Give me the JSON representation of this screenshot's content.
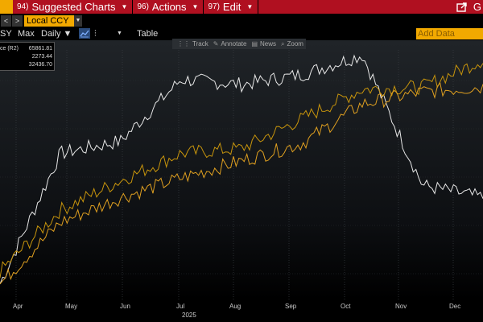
{
  "menubar": {
    "items": [
      {
        "num": "94)",
        "label": "Suggested Charts"
      },
      {
        "num": "96)",
        "label": "Actions"
      },
      {
        "num": "97)",
        "label": "Edit"
      }
    ],
    "right_label": "G"
  },
  "toolbar": {
    "back": "<",
    "forward": ">",
    "currency": "Local CCY"
  },
  "controls": {
    "period_fragment": "SY",
    "max": "Max",
    "frequency": "Daily ▼",
    "table": "Table",
    "add_data": "Add Data"
  },
  "tools": {
    "track": "Track",
    "annotate": "Annotate",
    "news": "News",
    "zoom": "Zoom"
  },
  "legend": {
    "rows": [
      {
        "name": "ce (R2)",
        "value": "65861.81"
      },
      {
        "name": "",
        "value": "2273.44"
      },
      {
        "name": "",
        "value": "32436.70"
      }
    ]
  },
  "axis": {
    "months": [
      "Apr",
      "May",
      "Jun",
      "Jul",
      "Aug",
      "Sep",
      "Oct",
      "Nov",
      "Dec"
    ],
    "year": "2025"
  },
  "colors": {
    "menubar": "#b01020",
    "accent": "#f2a900",
    "series_white": "#e8e8e8",
    "series_gold": "#c8950c",
    "series_orange": "#e0a020"
  },
  "chart_data": {
    "type": "line",
    "x": [
      "Apr",
      "May",
      "Jun",
      "Jul",
      "Aug",
      "Sep",
      "Oct",
      "Nov",
      "Dec"
    ],
    "series": [
      {
        "values": [
          0.05,
          0.58,
          0.63,
          0.88,
          0.86,
          0.9,
          0.98,
          0.45,
          0.4
        ]
      },
      {
        "values": [
          0.1,
          0.35,
          0.47,
          0.58,
          0.6,
          0.72,
          0.84,
          0.85,
          0.96
        ]
      },
      {
        "values": [
          0.05,
          0.3,
          0.4,
          0.48,
          0.55,
          0.62,
          0.78,
          0.83,
          0.85
        ]
      }
    ],
    "ylim": [
      0,
      1
    ]
  }
}
